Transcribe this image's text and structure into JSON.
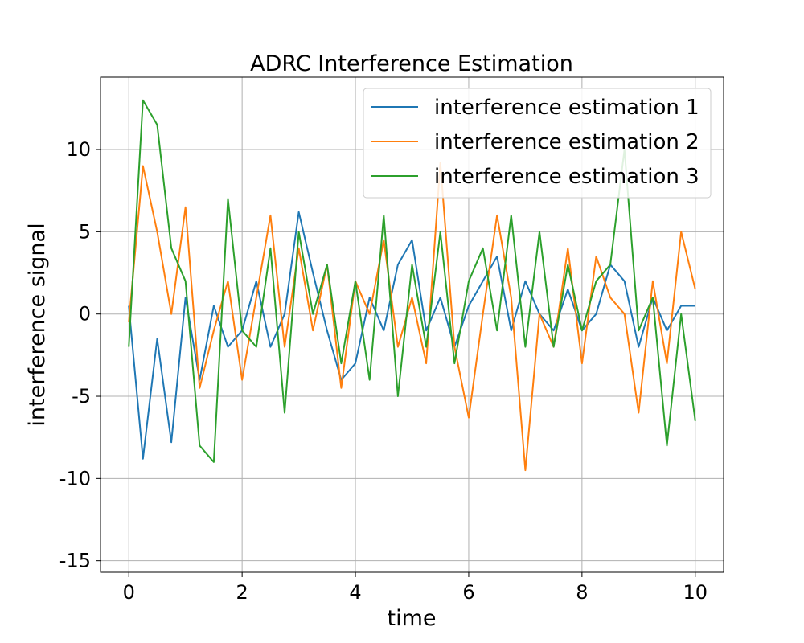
{
  "chart_data": {
    "type": "line",
    "title": "ADRC Interference Estimation",
    "xlabel": "time",
    "ylabel": "interference signal",
    "xlim": [
      -0.5,
      10.5
    ],
    "ylim": [
      -15.7,
      14.4
    ],
    "xticks": [
      0,
      2,
      4,
      6,
      8,
      10
    ],
    "xtick_labels": [
      "0",
      "2",
      "4",
      "6",
      "8",
      "10"
    ],
    "yticks": [
      -15,
      -10,
      -5,
      0,
      5,
      10
    ],
    "ytick_labels": [
      "-15",
      "-10",
      "-5",
      "0",
      "5",
      "10"
    ],
    "grid": true,
    "legend_position": "top-right",
    "x": [
      0,
      0.25,
      0.5,
      0.75,
      1,
      1.25,
      1.5,
      1.75,
      2,
      2.25,
      2.5,
      2.75,
      3,
      3.25,
      3.5,
      3.75,
      4,
      4.25,
      4.5,
      4.75,
      5,
      5.25,
      5.5,
      5.75,
      6,
      6.25,
      6.5,
      6.75,
      7,
      7.25,
      7.5,
      7.75,
      8,
      8.25,
      8.5,
      8.75,
      9,
      9.25,
      9.5,
      9.75,
      10
    ],
    "series": [
      {
        "name": "interference estimation 1",
        "color": "#1f77b4",
        "values": [
          0.5,
          -8.8,
          -1.5,
          -7.8,
          1.0,
          -4.0,
          0.5,
          -2.0,
          -1.0,
          2.0,
          -2.0,
          0.0,
          6.2,
          2.5,
          -1.0,
          -4.0,
          -3.0,
          1.0,
          -1.0,
          3.0,
          4.5,
          -1.0,
          1.0,
          -2.0,
          0.5,
          2.0,
          3.5,
          -1.0,
          2.0,
          0.0,
          -1.0,
          1.5,
          -1.0,
          0.0,
          3.0,
          2.0,
          -2.0,
          1.0,
          -1.0,
          0.5,
          0.5
        ]
      },
      {
        "name": "interference estimation 2",
        "color": "#ff7f0e",
        "values": [
          -0.5,
          9.0,
          5.0,
          0.0,
          6.5,
          -4.5,
          -1.0,
          2.0,
          -4.0,
          1.0,
          6.0,
          -2.0,
          4.0,
          -1.0,
          3.0,
          -4.5,
          2.0,
          0.0,
          4.5,
          -2.0,
          1.0,
          -3.0,
          9.2,
          -2.0,
          -6.3,
          0.0,
          6.0,
          1.0,
          -9.5,
          0.0,
          -2.0,
          4.0,
          -3.0,
          3.5,
          1.0,
          0.0,
          -6.0,
          2.0,
          -3.0,
          5.0,
          1.5
        ]
      },
      {
        "name": "interference estimation 3",
        "color": "#2ca02c",
        "values": [
          -2.0,
          13.0,
          11.5,
          4.0,
          2.0,
          -8.0,
          -9.0,
          7.0,
          -1.0,
          -2.0,
          4.0,
          -6.0,
          5.0,
          0.0,
          3.0,
          -3.0,
          2.0,
          -4.0,
          6.0,
          -5.0,
          3.0,
          -2.0,
          5.0,
          -3.0,
          2.0,
          4.0,
          -1.0,
          6.0,
          -2.0,
          5.0,
          -2.0,
          3.0,
          -1.0,
          2.0,
          3.0,
          10.0,
          -1.0,
          1.0,
          -8.0,
          0.0,
          -6.5
        ]
      }
    ]
  }
}
